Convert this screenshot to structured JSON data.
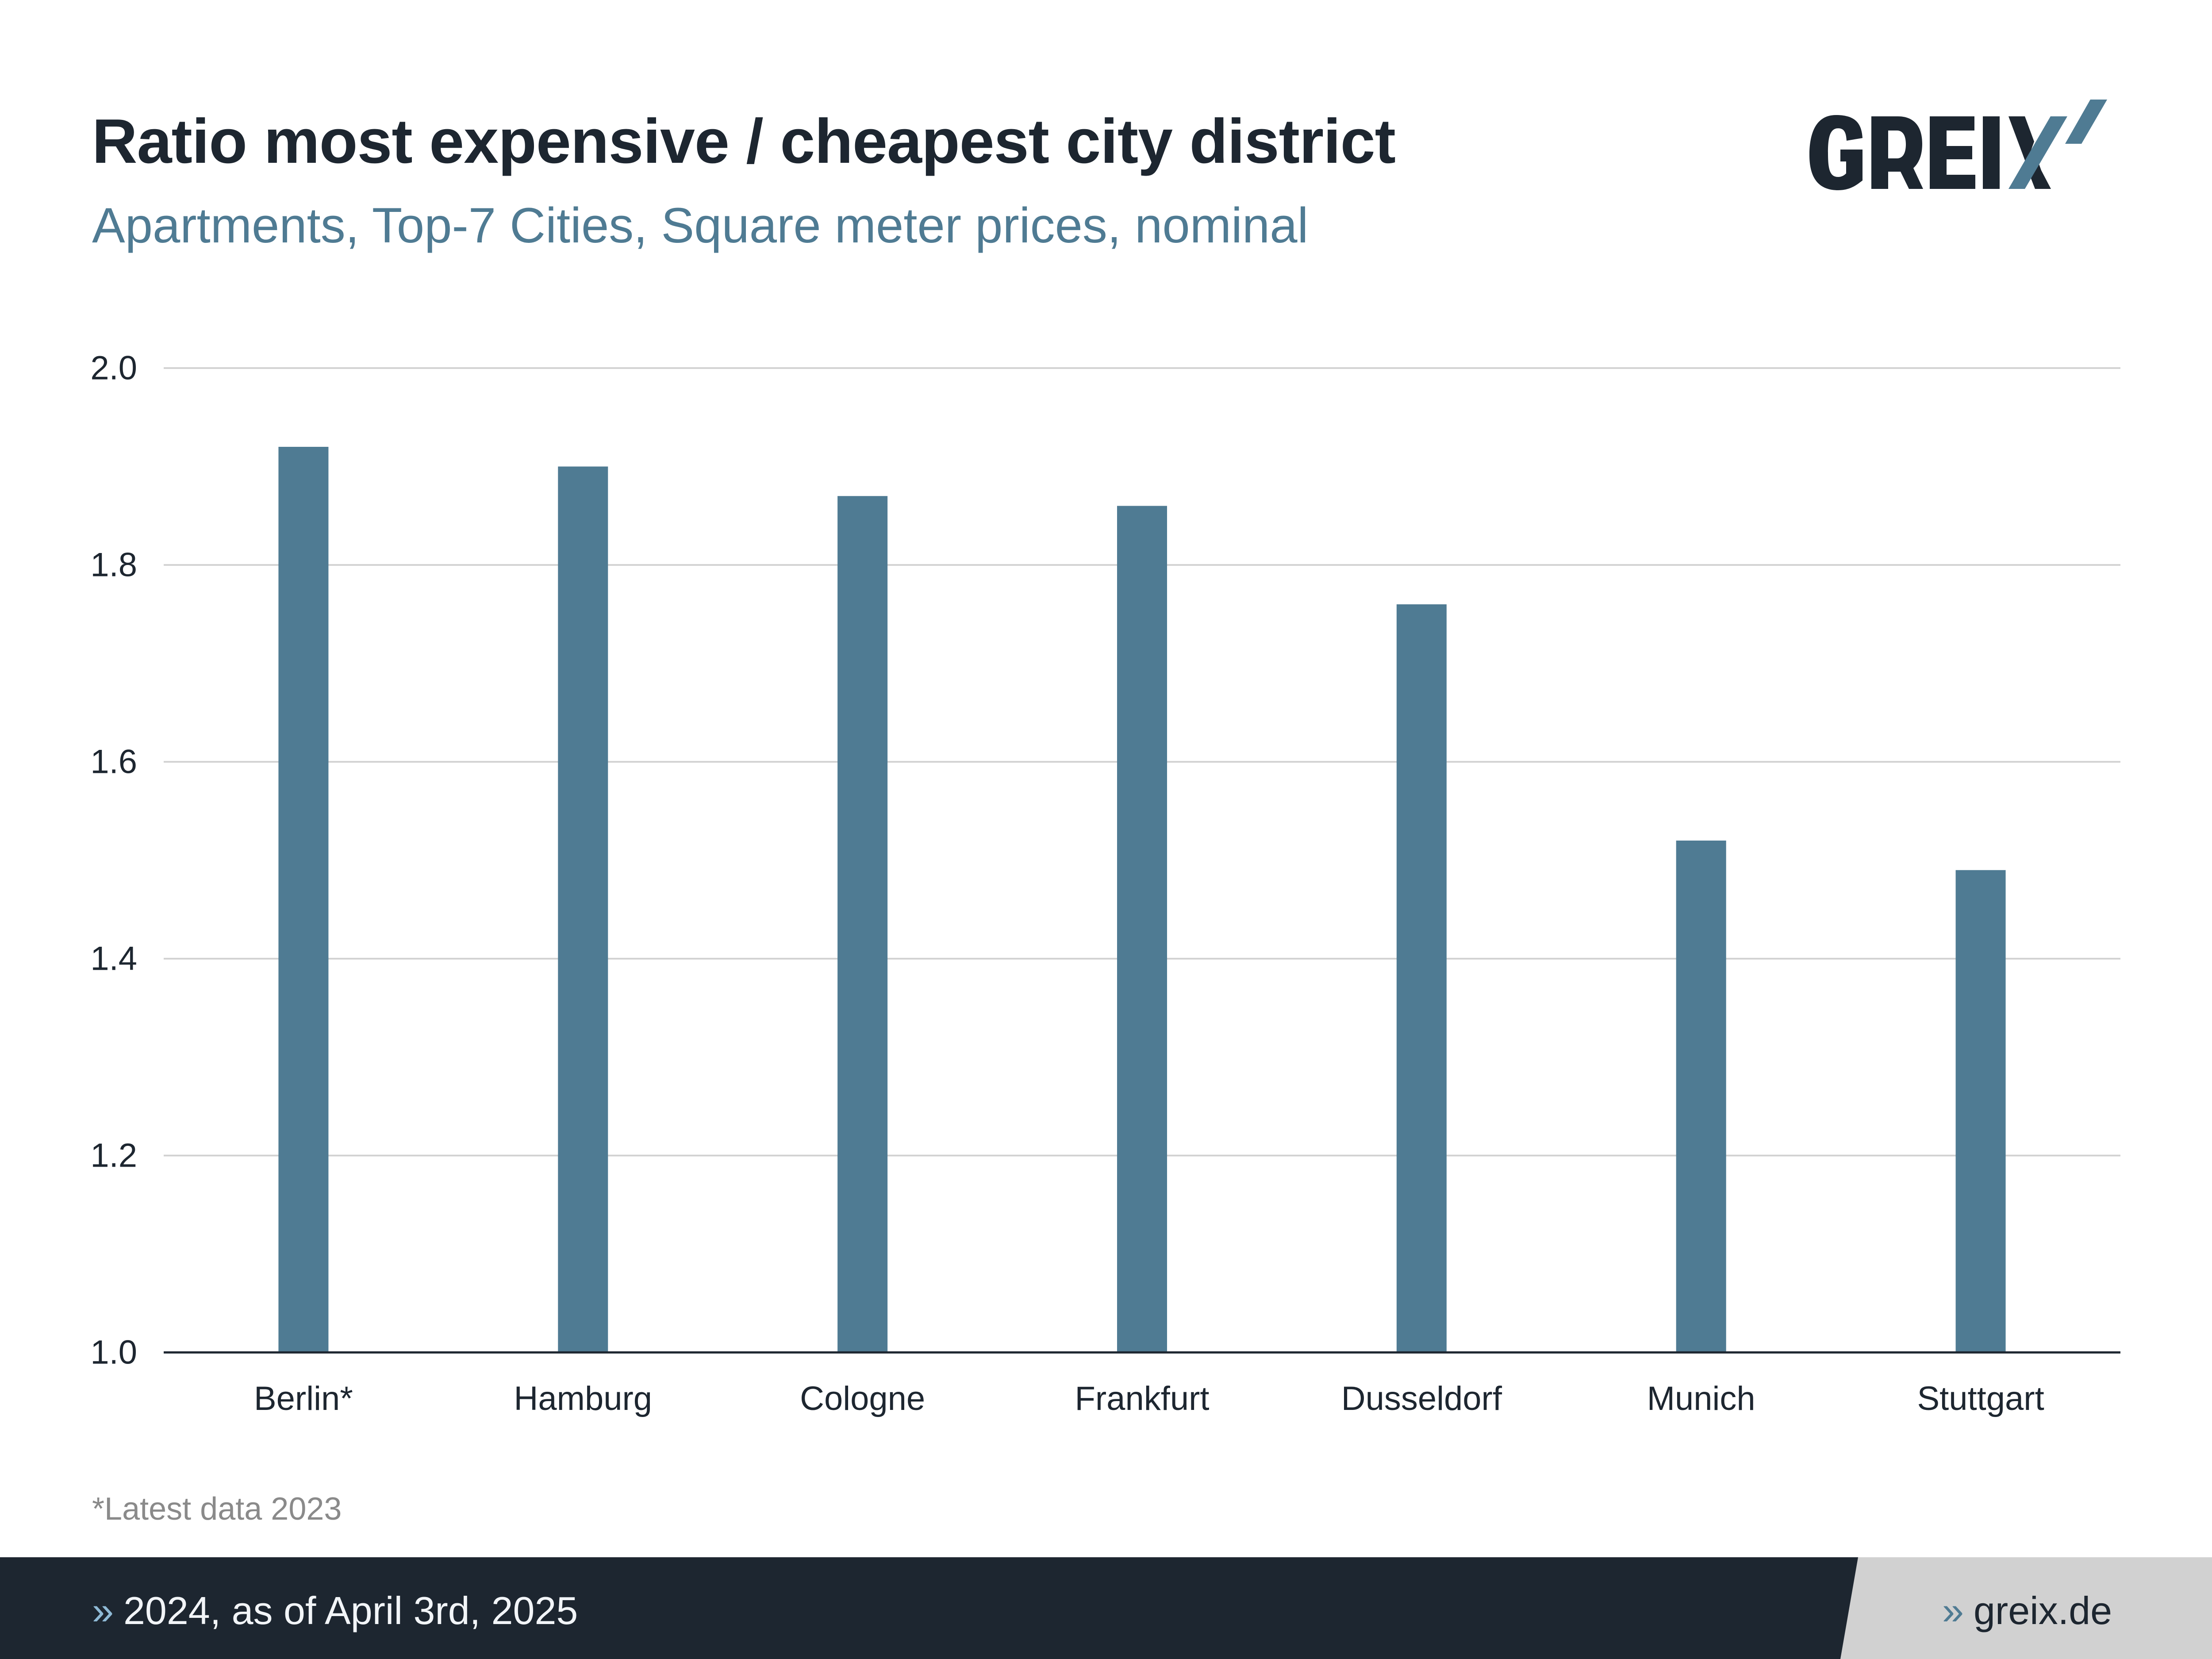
{
  "header": {
    "title": "Ratio most expensive / cheapest city district",
    "subtitle": "Apartments, Top-7 Cities, Square meter prices, nominal",
    "logo_text": "GREIX"
  },
  "colors": {
    "bar": "#4f7b93",
    "title": "#1d2630",
    "subtitle": "#4f7b93",
    "gridline": "#d3d3d3",
    "footer_dark": "#1d2630",
    "footer_light": "#d1d1d1",
    "logo_accent": "#4f7b93"
  },
  "chart_data": {
    "type": "bar",
    "title": "Ratio most expensive / cheapest city district",
    "subtitle": "Apartments, Top-7 Cities, Square meter prices, nominal",
    "xlabel": "",
    "ylabel": "",
    "categories": [
      "Berlin*",
      "Hamburg",
      "Cologne",
      "Frankfurt",
      "Dusseldorf",
      "Munich",
      "Stuttgart"
    ],
    "values": [
      1.92,
      1.9,
      1.87,
      1.86,
      1.76,
      1.52,
      1.49
    ],
    "ylim": [
      1.0,
      2.0
    ],
    "yticks": [
      1.0,
      1.2,
      1.4,
      1.6,
      1.8,
      2.0
    ],
    "ytick_labels": [
      "1.0",
      "1.2",
      "1.4",
      "1.6",
      "1.8",
      "2.0"
    ],
    "grid": true,
    "legend": "none"
  },
  "footnote": "*Latest data 2023",
  "footer": {
    "chevron": "»",
    "date_text": "2024, as of April 3rd, 2025",
    "website": "greix.de"
  }
}
